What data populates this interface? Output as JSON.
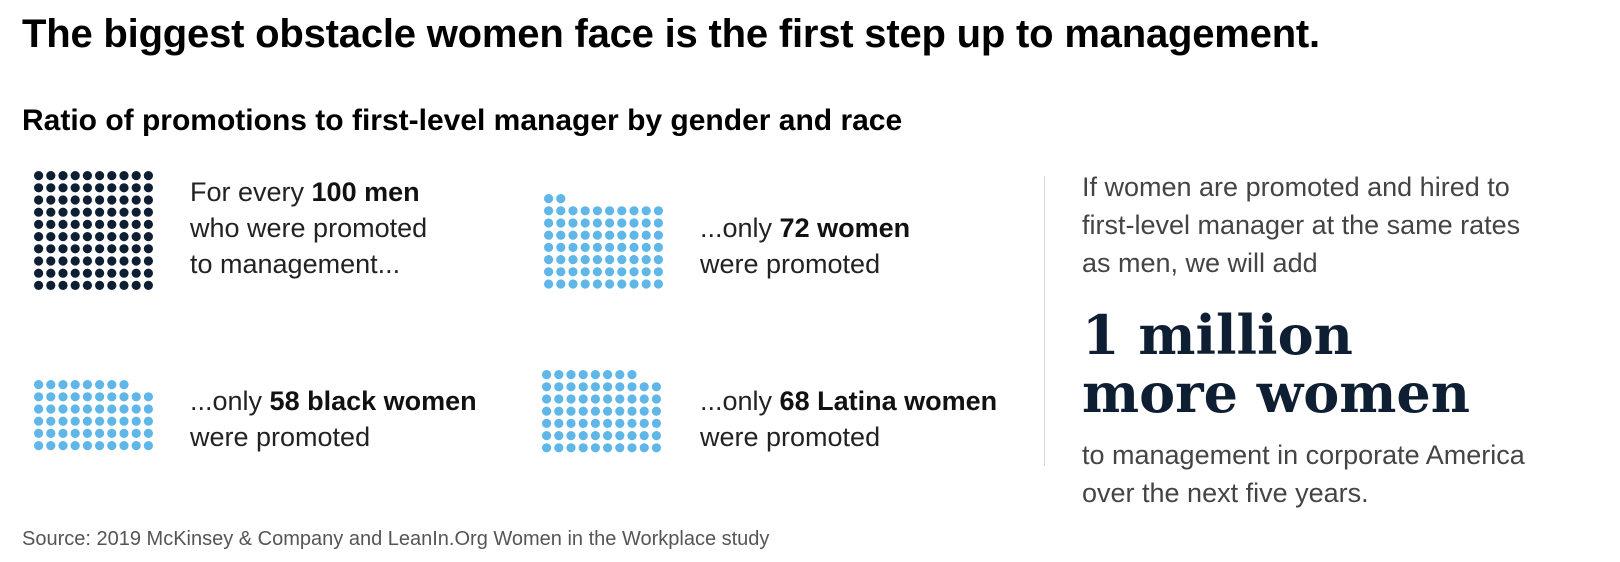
{
  "title": "The biggest obstacle women face is the first step up to management.",
  "chart_data": {
    "type": "waffle",
    "title": "Ratio of promotions to first-level manager by gender and race",
    "series": [
      {
        "name": "men",
        "value": 100,
        "color": "#0f1f33",
        "text_prefix": "For every ",
        "text_bold": "100 men",
        "text_lines": [
          "who were promoted",
          "to management..."
        ]
      },
      {
        "name": "women",
        "value": 72,
        "color": "#5fb6e9",
        "text_prefix": "...only ",
        "text_bold": "72 women",
        "text_lines": [
          "were promoted"
        ]
      },
      {
        "name": "black women",
        "value": 58,
        "color": "#5fb6e9",
        "text_prefix": "...only ",
        "text_bold": "58 black women",
        "text_lines": [
          "were promoted"
        ]
      },
      {
        "name": "Latina women",
        "value": 68,
        "color": "#5fb6e9",
        "text_prefix": "...only ",
        "text_bold": "68 Latina women",
        "text_lines": [
          "were promoted"
        ]
      }
    ]
  },
  "side": {
    "intro_lines": [
      "If women are promoted and hired to",
      "first-level manager at the same rates",
      "as men, we will add"
    ],
    "big_lines": [
      "1 million",
      "more women"
    ],
    "outro_lines": [
      "to management in corporate America",
      "over the next five years."
    ]
  },
  "source": "Source: 2019 McKinsey & Company and LeanIn.Org Women in the Workplace study",
  "colors": {
    "men": "#0f1f33",
    "women": "#5fb6e9",
    "big_text": "#0f1f33"
  }
}
